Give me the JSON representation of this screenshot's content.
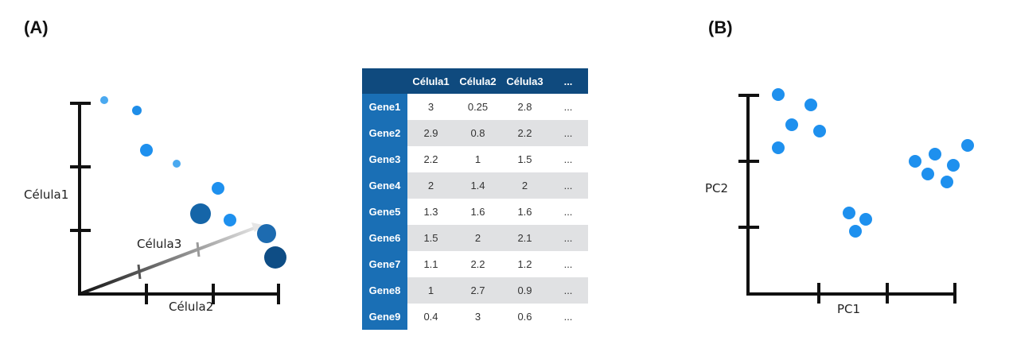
{
  "panels": {
    "a_label": "(A)",
    "b_label": "(B)"
  },
  "plot_a": {
    "x_label": "Célula1",
    "y_label": "Célula2",
    "z_label": "Célula3"
  },
  "table": {
    "headers": [
      "Célula1",
      "Célula2",
      "Célula3",
      "..."
    ],
    "rows": [
      {
        "gene": "Gene1",
        "v1": "3",
        "v2": "0.25",
        "v3": "2.8",
        "more": "..."
      },
      {
        "gene": "Gene2",
        "v1": "2.9",
        "v2": "0.8",
        "v3": "2.2",
        "more": "..."
      },
      {
        "gene": "Gene3",
        "v1": "2.2",
        "v2": "1",
        "v3": "1.5",
        "more": "..."
      },
      {
        "gene": "Gene4",
        "v1": "2",
        "v2": "1.4",
        "v3": "2",
        "more": "..."
      },
      {
        "gene": "Gene5",
        "v1": "1.3",
        "v2": "1.6",
        "v3": "1.6",
        "more": "..."
      },
      {
        "gene": "Gene6",
        "v1": "1.5",
        "v2": "2",
        "v3": "2.1",
        "more": "..."
      },
      {
        "gene": "Gene7",
        "v1": "1.1",
        "v2": "2.2",
        "v3": "1.2",
        "more": "..."
      },
      {
        "gene": "Gene8",
        "v1": "1",
        "v2": "2.7",
        "v3": "0.9",
        "more": "..."
      },
      {
        "gene": "Gene9",
        "v1": "0.4",
        "v2": "3",
        "v3": "0.6",
        "more": "..."
      }
    ]
  },
  "plot_b": {
    "x_label": "PC1",
    "y_label": "PC2"
  },
  "colors": {
    "header": "#0f4a7e",
    "gene_cell": "#1a6fb5",
    "stripe": "#e0e1e3",
    "dot": "#1e90ee",
    "dot_dark": "#0e4d85"
  }
}
